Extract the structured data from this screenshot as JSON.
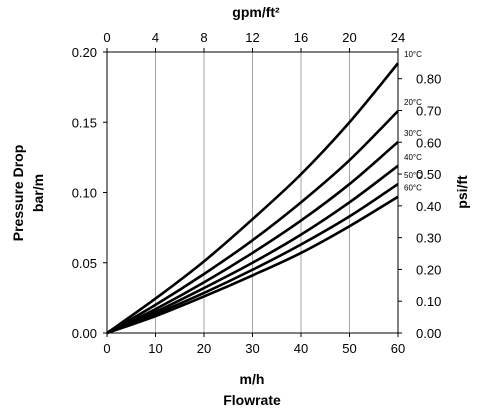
{
  "chart_data": {
    "type": "line",
    "title": "",
    "x_bottom": {
      "label_line1": "m/h",
      "label_line2": "Flowrate",
      "range": [
        0,
        60
      ],
      "ticks": [
        "0",
        "10",
        "20",
        "30",
        "40",
        "50",
        "60"
      ]
    },
    "x_top": {
      "label": "gpm/ft²",
      "range": [
        0,
        24
      ],
      "ticks": [
        "0",
        "4",
        "8",
        "12",
        "16",
        "20",
        "24"
      ]
    },
    "y_left": {
      "label_line1": "Pressure Drop",
      "label_line2": "bar/m",
      "range": [
        0,
        0.2
      ],
      "ticks": [
        "0.00",
        "0.05",
        "0.10",
        "0.15",
        "0.20"
      ]
    },
    "y_right": {
      "label": "psi/ft",
      "range": [
        0,
        0.884
      ],
      "ticks": [
        "0.00",
        "0.10",
        "0.20",
        "0.30",
        "0.40",
        "0.50",
        "0.60",
        "0.70",
        "0.80"
      ]
    },
    "grid": "vertical",
    "series": [
      {
        "name": "10°C",
        "x": [
          0,
          10,
          20,
          30,
          40,
          50,
          60
        ],
        "y": [
          0,
          0.0245,
          0.051,
          0.081,
          0.113,
          0.15,
          0.192
        ]
      },
      {
        "name": "20°C",
        "x": [
          0,
          10,
          20,
          30,
          40,
          50,
          60
        ],
        "y": [
          0,
          0.02,
          0.042,
          0.066,
          0.093,
          0.123,
          0.158
        ]
      },
      {
        "name": "30°C",
        "x": [
          0,
          10,
          20,
          30,
          40,
          50,
          60
        ],
        "y": [
          0,
          0.017,
          0.036,
          0.057,
          0.08,
          0.106,
          0.136
        ]
      },
      {
        "name": "40°C",
        "x": [
          0,
          10,
          20,
          30,
          40,
          50,
          60
        ],
        "y": [
          0,
          0.015,
          0.032,
          0.05,
          0.07,
          0.093,
          0.119
        ]
      },
      {
        "name": "50°C",
        "x": [
          0,
          10,
          20,
          30,
          40,
          50,
          60
        ],
        "y": [
          0,
          0.0135,
          0.0285,
          0.045,
          0.063,
          0.083,
          0.106
        ]
      },
      {
        "name": "60°C",
        "x": [
          0,
          10,
          20,
          30,
          40,
          50,
          60
        ],
        "y": [
          0,
          0.012,
          0.026,
          0.041,
          0.057,
          0.076,
          0.097
        ]
      }
    ]
  }
}
